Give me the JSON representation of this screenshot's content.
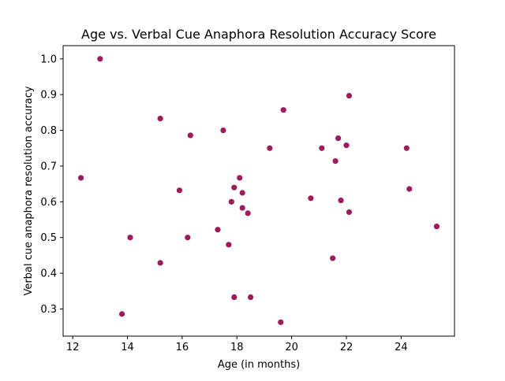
{
  "chart_data": {
    "type": "scatter",
    "title": "Age vs. Verbal Cue Anaphora Resolution Accuracy Score",
    "xlabel": "Age (in months)",
    "ylabel": "Verbal cue anaphora resolution accuracy",
    "xlim": [
      11.65,
      25.95
    ],
    "ylim": [
      0.224,
      1.037
    ],
    "xticks": [
      12,
      14,
      16,
      18,
      20,
      22,
      24
    ],
    "xtick_labels": [
      "12",
      "14",
      "16",
      "18",
      "20",
      "22",
      "24"
    ],
    "yticks": [
      0.3,
      0.4,
      0.5,
      0.6,
      0.7,
      0.8,
      0.9,
      1.0
    ],
    "ytick_labels": [
      "0.3",
      "0.4",
      "0.5",
      "0.6",
      "0.7",
      "0.8",
      "0.9",
      "1.0"
    ],
    "grid": false,
    "marker_color": "#a2195b",
    "points": [
      {
        "x": 12.3,
        "y": 0.667
      },
      {
        "x": 13.0,
        "y": 1.0
      },
      {
        "x": 13.8,
        "y": 0.286
      },
      {
        "x": 14.1,
        "y": 0.5
      },
      {
        "x": 15.2,
        "y": 0.833
      },
      {
        "x": 15.2,
        "y": 0.429
      },
      {
        "x": 15.9,
        "y": 0.632
      },
      {
        "x": 16.2,
        "y": 0.5
      },
      {
        "x": 16.3,
        "y": 0.786
      },
      {
        "x": 17.3,
        "y": 0.522
      },
      {
        "x": 17.5,
        "y": 0.8
      },
      {
        "x": 17.7,
        "y": 0.48
      },
      {
        "x": 17.8,
        "y": 0.6
      },
      {
        "x": 17.9,
        "y": 0.64
      },
      {
        "x": 17.9,
        "y": 0.333
      },
      {
        "x": 18.1,
        "y": 0.667
      },
      {
        "x": 18.2,
        "y": 0.625
      },
      {
        "x": 18.2,
        "y": 0.583
      },
      {
        "x": 18.4,
        "y": 0.568
      },
      {
        "x": 18.5,
        "y": 0.333
      },
      {
        "x": 19.2,
        "y": 0.75
      },
      {
        "x": 19.6,
        "y": 0.263
      },
      {
        "x": 19.7,
        "y": 0.857
      },
      {
        "x": 20.7,
        "y": 0.61
      },
      {
        "x": 21.1,
        "y": 0.75
      },
      {
        "x": 21.5,
        "y": 0.442
      },
      {
        "x": 21.6,
        "y": 0.714
      },
      {
        "x": 21.7,
        "y": 0.778
      },
      {
        "x": 21.8,
        "y": 0.604
      },
      {
        "x": 22.0,
        "y": 0.758
      },
      {
        "x": 22.1,
        "y": 0.897
      },
      {
        "x": 22.1,
        "y": 0.571
      },
      {
        "x": 24.2,
        "y": 0.75
      },
      {
        "x": 24.3,
        "y": 0.636
      },
      {
        "x": 25.3,
        "y": 0.531
      }
    ]
  }
}
